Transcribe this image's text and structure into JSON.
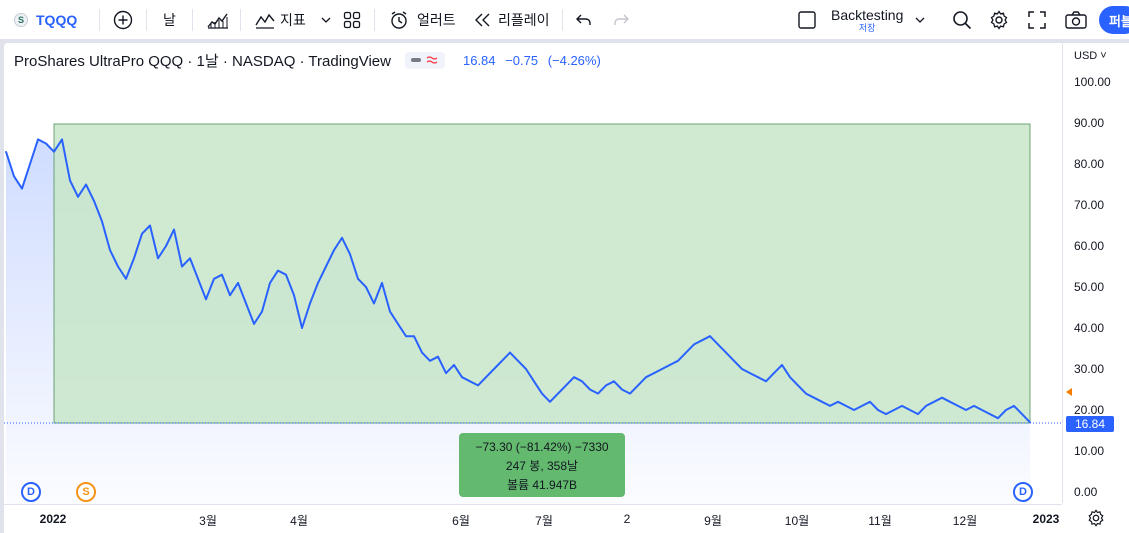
{
  "toolbar": {
    "symbol": "TQQQ",
    "logo_text": "S",
    "add_symbol_icon": "plus-circle-icon",
    "interval": "날",
    "chart_type_icon": "bars-icon",
    "indicators_label": "지표",
    "layout_icon": "grid-icon",
    "alert_label": "얼러트",
    "replay_label": "리플레이",
    "backtest_title": "Backtesting",
    "backtest_sub": "저장",
    "publish_label": "퍼블"
  },
  "legend": {
    "title": "ProShares UltraPro QQQ · 1날 · NASDAQ · TradingView",
    "last": "16.84",
    "change": "−0.75",
    "change_pct": "(−4.26%)"
  },
  "price_axis": {
    "currency": "USD",
    "ticks": [
      "100.00",
      "90.00",
      "80.00",
      "70.00",
      "60.00",
      "50.00",
      "40.00",
      "30.00",
      "20.00",
      "10.00",
      "0.00"
    ],
    "last_price": "16.84"
  },
  "time_axis": {
    "labels": [
      "2022",
      "3월",
      "4월",
      "6월",
      "7월",
      "2",
      "9월",
      "10월",
      "11월",
      "12월",
      "2023"
    ]
  },
  "events": [
    {
      "letter": "D",
      "type": "dividend"
    },
    {
      "letter": "S",
      "type": "split"
    },
    {
      "letter": "D",
      "type": "dividend"
    }
  ],
  "measure": {
    "line1": "−73.30 (−81.42%) −7330",
    "line2": "247 봉, 358날",
    "line3": "볼륨 41.947B"
  },
  "colors": {
    "accent": "#2962ff",
    "line": "#2962ff",
    "measure_fill": "#c8e6c9",
    "measure_label": "#63b96d"
  },
  "chart_data": {
    "type": "line",
    "title": "ProShares UltraPro QQQ · 1날 · NASDAQ · TradingView",
    "ylim": [
      0,
      100
    ],
    "x": [
      0,
      2,
      4,
      6,
      8,
      10,
      12,
      14,
      16,
      18,
      20,
      22,
      24,
      26,
      28,
      30,
      32,
      34,
      36,
      38,
      40,
      42,
      44,
      46,
      48,
      50,
      52,
      54,
      56,
      58,
      60,
      62,
      64,
      66,
      68,
      70,
      72,
      74,
      76,
      78,
      80,
      82,
      84,
      86,
      88,
      90,
      92,
      94,
      96,
      98,
      100,
      102,
      104,
      106,
      108,
      110,
      112,
      114,
      116,
      118,
      120,
      122,
      124,
      126,
      128,
      130,
      132,
      134,
      136,
      138,
      140,
      142,
      144,
      146,
      148,
      150,
      152,
      154,
      156,
      158,
      160,
      162,
      164,
      166,
      168,
      170,
      172,
      174,
      176,
      178,
      180,
      182,
      184,
      186,
      188,
      190,
      192,
      194,
      196,
      198,
      200,
      202,
      204,
      206,
      208,
      210,
      212,
      214,
      216,
      218,
      220,
      222,
      224,
      226,
      228,
      230,
      232,
      234,
      236,
      238,
      240,
      242,
      244,
      246,
      248,
      250,
      252,
      254,
      256
    ],
    "values": [
      83,
      77,
      74,
      80,
      86,
      85,
      83,
      86,
      76,
      72,
      75,
      71,
      66,
      59,
      55,
      52,
      57,
      63,
      65,
      57,
      60,
      64,
      55,
      57,
      52,
      47,
      52,
      53,
      48,
      51,
      46,
      41,
      44,
      51,
      54,
      53,
      48,
      40,
      46,
      51,
      55,
      59,
      62,
      58,
      52,
      50,
      46,
      51,
      44,
      41,
      38,
      38,
      34,
      32,
      33,
      29,
      31,
      28,
      27,
      26,
      28,
      30,
      32,
      34,
      32,
      30,
      27,
      24,
      22,
      24,
      26,
      28,
      27,
      25,
      24,
      26,
      27,
      25,
      24,
      26,
      28,
      29,
      30,
      31,
      32,
      34,
      36,
      37,
      38,
      36,
      34,
      32,
      30,
      29,
      28,
      27,
      29,
      31,
      28,
      26,
      24,
      23,
      22,
      21,
      22,
      21,
      20,
      21,
      22,
      20,
      19,
      20,
      21,
      20,
      19,
      21,
      22,
      23,
      22,
      21,
      20,
      21,
      20,
      19,
      18,
      20,
      21,
      19,
      17
    ]
  }
}
